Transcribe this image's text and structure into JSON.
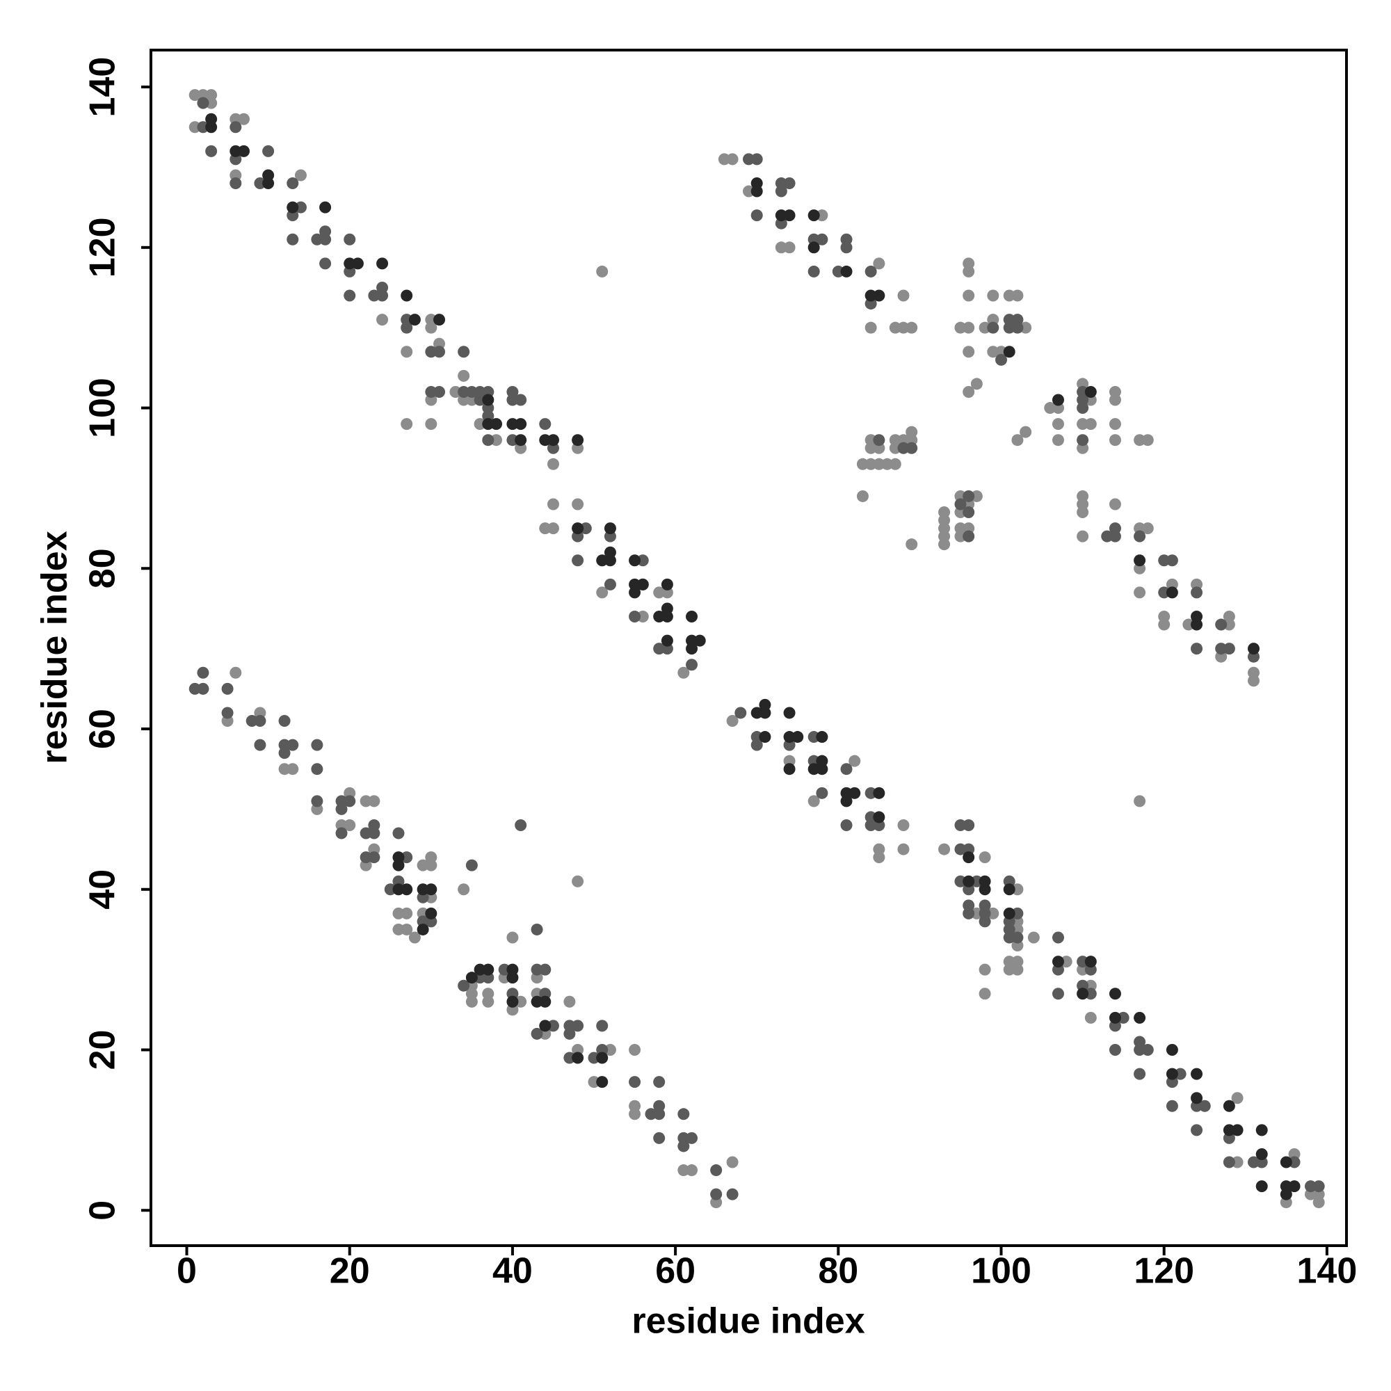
{
  "chart_data": {
    "type": "scatter",
    "xlabel": "residue index",
    "ylabel": "residue index",
    "xlim": [
      -4.4,
      142.4
    ],
    "ylim": [
      -4.4,
      144.6
    ],
    "xticks": [
      0,
      20,
      40,
      60,
      80,
      100,
      120,
      140
    ],
    "yticks": [
      0,
      20,
      40,
      60,
      80,
      100,
      120,
      140
    ],
    "grid": false,
    "series": [
      {
        "color": "#8c8c8c",
        "x": [
          1,
          2,
          3,
          1,
          3,
          7,
          6,
          6,
          14,
          24,
          30,
          30,
          27,
          31,
          30,
          33,
          34,
          34,
          35,
          36,
          38,
          41,
          45,
          48,
          27,
          30,
          44,
          45,
          45,
          48,
          51,
          56,
          58,
          59,
          61,
          6,
          5,
          9,
          12,
          13,
          16,
          20,
          19,
          20,
          22,
          23,
          23,
          22,
          26,
          27,
          26,
          27,
          28,
          29,
          30,
          30,
          30,
          29,
          34,
          48,
          35,
          35,
          35,
          37,
          37,
          39,
          41,
          40,
          40,
          43,
          43,
          44,
          47,
          48,
          52,
          50,
          55,
          55,
          55,
          61,
          62,
          65,
          67,
          67,
          74,
          77,
          82,
          85,
          85,
          88,
          88,
          93,
          97,
          98,
          99,
          102,
          102,
          102,
          102,
          104,
          101,
          102,
          101,
          102,
          98,
          98,
          108,
          110,
          111,
          111,
          129,
          129,
          136,
          135,
          138,
          139,
          139,
          117,
          66,
          67,
          69,
          73,
          74,
          78,
          85,
          84,
          87,
          88,
          88,
          89,
          51,
          95,
          96,
          96,
          96,
          96,
          99,
          99,
          98,
          99,
          96,
          101,
          102,
          103,
          97,
          96,
          102,
          103,
          83,
          84,
          85,
          86,
          87,
          84,
          85,
          84,
          87,
          87,
          88,
          89,
          89,
          83,
          89,
          93,
          93,
          93,
          93,
          93,
          95,
          97,
          96,
          95,
          95,
          96,
          95,
          106,
          107,
          107,
          107,
          110,
          111,
          110,
          111,
          110,
          114,
          114,
          114,
          114,
          117,
          118,
          110,
          110,
          110,
          110,
          114,
          117,
          118,
          117,
          117,
          121,
          120,
          120,
          123,
          124,
          128,
          128,
          127,
          131,
          131,
          100
        ],
        "values": [
          139,
          139,
          139,
          135,
          138,
          136,
          136,
          129,
          129,
          111,
          111,
          110,
          107,
          108,
          101,
          102,
          104,
          101,
          101,
          98,
          96,
          95,
          93,
          95,
          98,
          98,
          85,
          85,
          88,
          88,
          77,
          74,
          77,
          77,
          67,
          67,
          61,
          62,
          55,
          55,
          50,
          52,
          48,
          48,
          51,
          51,
          45,
          43,
          37,
          37,
          35,
          35,
          34,
          43,
          43,
          44,
          39,
          37,
          40,
          41,
          28,
          27,
          26,
          27,
          26,
          29,
          26,
          25,
          34,
          29,
          27,
          22,
          26,
          20,
          20,
          16,
          20,
          13,
          12,
          5,
          5,
          1,
          6,
          61,
          56,
          51,
          56,
          45,
          44,
          48,
          45,
          45,
          37,
          44,
          37,
          40,
          36,
          35,
          33,
          34,
          31,
          31,
          30,
          30,
          30,
          27,
          31,
          30,
          28,
          24,
          6,
          14,
          7,
          1,
          2,
          2,
          1,
          51,
          131,
          131,
          127,
          120,
          120,
          124,
          118,
          110,
          110,
          114,
          110,
          110,
          117,
          110,
          110,
          114,
          117,
          118,
          114,
          111,
          110,
          107,
          107,
          114,
          114,
          110,
          103,
          102,
          96,
          97,
          93,
          93,
          93,
          93,
          93,
          95,
          95,
          96,
          95,
          96,
          96,
          96,
          97,
          89,
          83,
          87,
          86,
          85,
          84,
          83,
          89,
          89,
          88,
          87,
          85,
          85,
          84,
          100,
          100,
          98,
          96,
          103,
          101,
          98,
          98,
          95,
          102,
          101,
          98,
          96,
          96,
          96,
          89,
          88,
          87,
          84,
          88,
          85,
          85,
          80,
          77,
          78,
          74,
          73,
          73,
          78,
          74,
          73,
          69,
          67,
          66,
          107
        ]
      },
      {
        "color": "#5a5a5a",
        "x": [
          2,
          2,
          3,
          6,
          6,
          6,
          9,
          10,
          13,
          13,
          14,
          13,
          16,
          17,
          17,
          17,
          20,
          20,
          20,
          23,
          24,
          24,
          27,
          27,
          30,
          31,
          34,
          30,
          31,
          34,
          35,
          36,
          37,
          36,
          37,
          37,
          37,
          40,
          40,
          41,
          40,
          44,
          45,
          48,
          49,
          48,
          52,
          52,
          56,
          55,
          56,
          59,
          58,
          62,
          1,
          2,
          2,
          5,
          5,
          8,
          9,
          9,
          12,
          12,
          13,
          12,
          16,
          16,
          16,
          19,
          20,
          19,
          19,
          22,
          23,
          23,
          22,
          23,
          26,
          27,
          26,
          25,
          29,
          30,
          29,
          35,
          41,
          43,
          34,
          36,
          37,
          39,
          40,
          43,
          44,
          44,
          43,
          45,
          47,
          47,
          48,
          47,
          50,
          51,
          51,
          55,
          58,
          58,
          57,
          58,
          58,
          61,
          61,
          62,
          61,
          65,
          65,
          67,
          68,
          70,
          70,
          74,
          77,
          77,
          78,
          81,
          81,
          84,
          84,
          84,
          85,
          95,
          96,
          96,
          95,
          97,
          95,
          96,
          96,
          96,
          98,
          98,
          98,
          101,
          101,
          102,
          101,
          101,
          102,
          107,
          107,
          107,
          110,
          111,
          110,
          111,
          114,
          115,
          114,
          117,
          117,
          118,
          117,
          121,
          121,
          122,
          124,
          125,
          124,
          128,
          128,
          132,
          131,
          136,
          138,
          139,
          70,
          69,
          70,
          73,
          74,
          73,
          73,
          78,
          77,
          77,
          80,
          81,
          81,
          84,
          84,
          85,
          88,
          89,
          96,
          95,
          96,
          96,
          101,
          102,
          102,
          100,
          110,
          110,
          110,
          110,
          113,
          114,
          114,
          117,
          120,
          121,
          120,
          124,
          124,
          127,
          127,
          128,
          131,
          99,
          101
        ],
        "values": [
          138,
          135,
          132,
          135,
          131,
          128,
          128,
          132,
          128,
          124,
          125,
          121,
          121,
          121,
          122,
          118,
          121,
          117,
          114,
          114,
          114,
          115,
          111,
          110,
          107,
          107,
          107,
          102,
          102,
          102,
          102,
          102,
          102,
          101,
          100,
          99,
          96,
          102,
          101,
          101,
          96,
          98,
          95,
          84,
          85,
          81,
          84,
          78,
          81,
          74,
          78,
          70,
          70,
          68,
          65,
          65,
          67,
          65,
          62,
          61,
          61,
          58,
          61,
          58,
          58,
          57,
          58,
          55,
          51,
          51,
          51,
          50,
          47,
          47,
          48,
          47,
          44,
          44,
          47,
          44,
          41,
          40,
          39,
          36,
          36,
          43,
          48,
          35,
          28,
          29,
          29,
          30,
          27,
          30,
          30,
          27,
          22,
          23,
          23,
          22,
          23,
          19,
          19,
          20,
          23,
          16,
          16,
          12,
          12,
          13,
          9,
          12,
          9,
          9,
          8,
          5,
          2,
          2,
          62,
          59,
          58,
          58,
          59,
          56,
          52,
          55,
          48,
          52,
          49,
          48,
          48,
          48,
          48,
          45,
          45,
          41,
          41,
          40,
          38,
          37,
          38,
          37,
          36,
          41,
          36,
          37,
          35,
          34,
          34,
          34,
          30,
          27,
          31,
          30,
          28,
          27,
          23,
          24,
          20,
          21,
          20,
          20,
          17,
          16,
          13,
          17,
          13,
          13,
          10,
          9,
          6,
          6,
          6,
          6,
          3,
          3,
          131,
          131,
          124,
          128,
          128,
          127,
          123,
          121,
          121,
          117,
          117,
          121,
          120,
          117,
          113,
          96,
          95,
          95,
          89,
          88,
          87,
          84,
          110,
          111,
          110,
          106,
          102,
          101,
          100,
          96,
          84,
          84,
          85,
          84,
          81,
          81,
          77,
          77,
          70,
          73,
          70,
          70,
          69,
          110,
          111
        ]
      },
      {
        "color": "#262626",
        "x": [
          3,
          3,
          6,
          7,
          10,
          10,
          13,
          17,
          20,
          21,
          24,
          27,
          28,
          31,
          37,
          37,
          38,
          40,
          41,
          41,
          44,
          45,
          48,
          48,
          52,
          51,
          52,
          52,
          55,
          55,
          56,
          55,
          59,
          58,
          59,
          59,
          59,
          62,
          62,
          63,
          62,
          26,
          26,
          26,
          27,
          29,
          30,
          29,
          30,
          35,
          36,
          37,
          40,
          40,
          40,
          44,
          43,
          44,
          48,
          51,
          51,
          70,
          71,
          71,
          71,
          74,
          74,
          75,
          74,
          78,
          77,
          78,
          78,
          81,
          82,
          81,
          85,
          85,
          96,
          96,
          98,
          98,
          101,
          101,
          107,
          111,
          110,
          114,
          114,
          117,
          121,
          121,
          124,
          124,
          128,
          128,
          129,
          132,
          132,
          132,
          135,
          135,
          136,
          135,
          70,
          70,
          73,
          74,
          77,
          77,
          81,
          84,
          85,
          101,
          107,
          111,
          117,
          121,
          124,
          124,
          131
        ],
        "values": [
          136,
          135,
          132,
          132,
          129,
          128,
          125,
          125,
          118,
          118,
          118,
          114,
          111,
          111,
          101,
          98,
          98,
          98,
          98,
          96,
          96,
          96,
          96,
          85,
          85,
          81,
          81,
          82,
          81,
          78,
          78,
          77,
          78,
          74,
          74,
          75,
          71,
          74,
          71,
          71,
          70,
          44,
          43,
          40,
          40,
          40,
          40,
          35,
          37,
          29,
          30,
          30,
          30,
          29,
          26,
          26,
          26,
          23,
          19,
          19,
          16,
          62,
          62,
          63,
          59,
          62,
          59,
          59,
          55,
          59,
          55,
          56,
          55,
          52,
          52,
          51,
          52,
          49,
          44,
          41,
          41,
          40,
          40,
          37,
          31,
          31,
          27,
          27,
          24,
          24,
          20,
          17,
          17,
          14,
          13,
          10,
          10,
          10,
          7,
          3,
          6,
          3,
          3,
          2,
          128,
          127,
          124,
          124,
          124,
          120,
          117,
          114,
          114,
          107,
          101,
          102,
          81,
          77,
          74,
          73,
          70
        ]
      }
    ]
  }
}
